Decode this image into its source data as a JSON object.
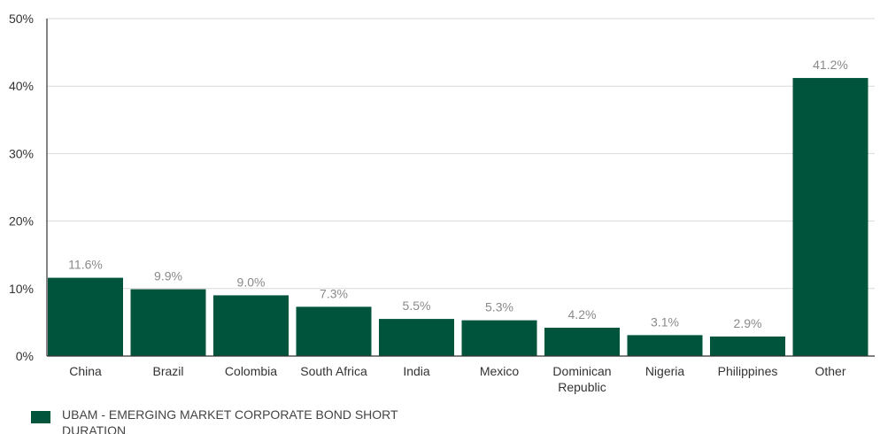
{
  "chart_data": {
    "type": "bar",
    "categories": [
      "China",
      "Brazil",
      "Colombia",
      "South Africa",
      "India",
      "Mexico",
      "Dominican Republic",
      "Nigeria",
      "Philippines",
      "Other"
    ],
    "series": [
      {
        "name": "UBAM - EMERGING MARKET CORPORATE BOND SHORT DURATION",
        "values": [
          11.6,
          9.9,
          9.0,
          7.3,
          5.5,
          5.3,
          4.2,
          3.1,
          2.9,
          41.2
        ],
        "data_labels": [
          "11.6%",
          "9.9%",
          "9.0%",
          "7.3%",
          "5.5%",
          "5.3%",
          "4.2%",
          "3.1%",
          "2.9%",
          "41.2%"
        ]
      }
    ],
    "ylim": [
      0,
      50
    ],
    "yticks": [
      0,
      10,
      20,
      30,
      40,
      50
    ],
    "ytick_labels": [
      "0%",
      "10%",
      "20%",
      "30%",
      "40%",
      "50%"
    ],
    "grid": true,
    "legend_position": "bottom-left",
    "colors": {
      "bar": "#00543c"
    }
  }
}
